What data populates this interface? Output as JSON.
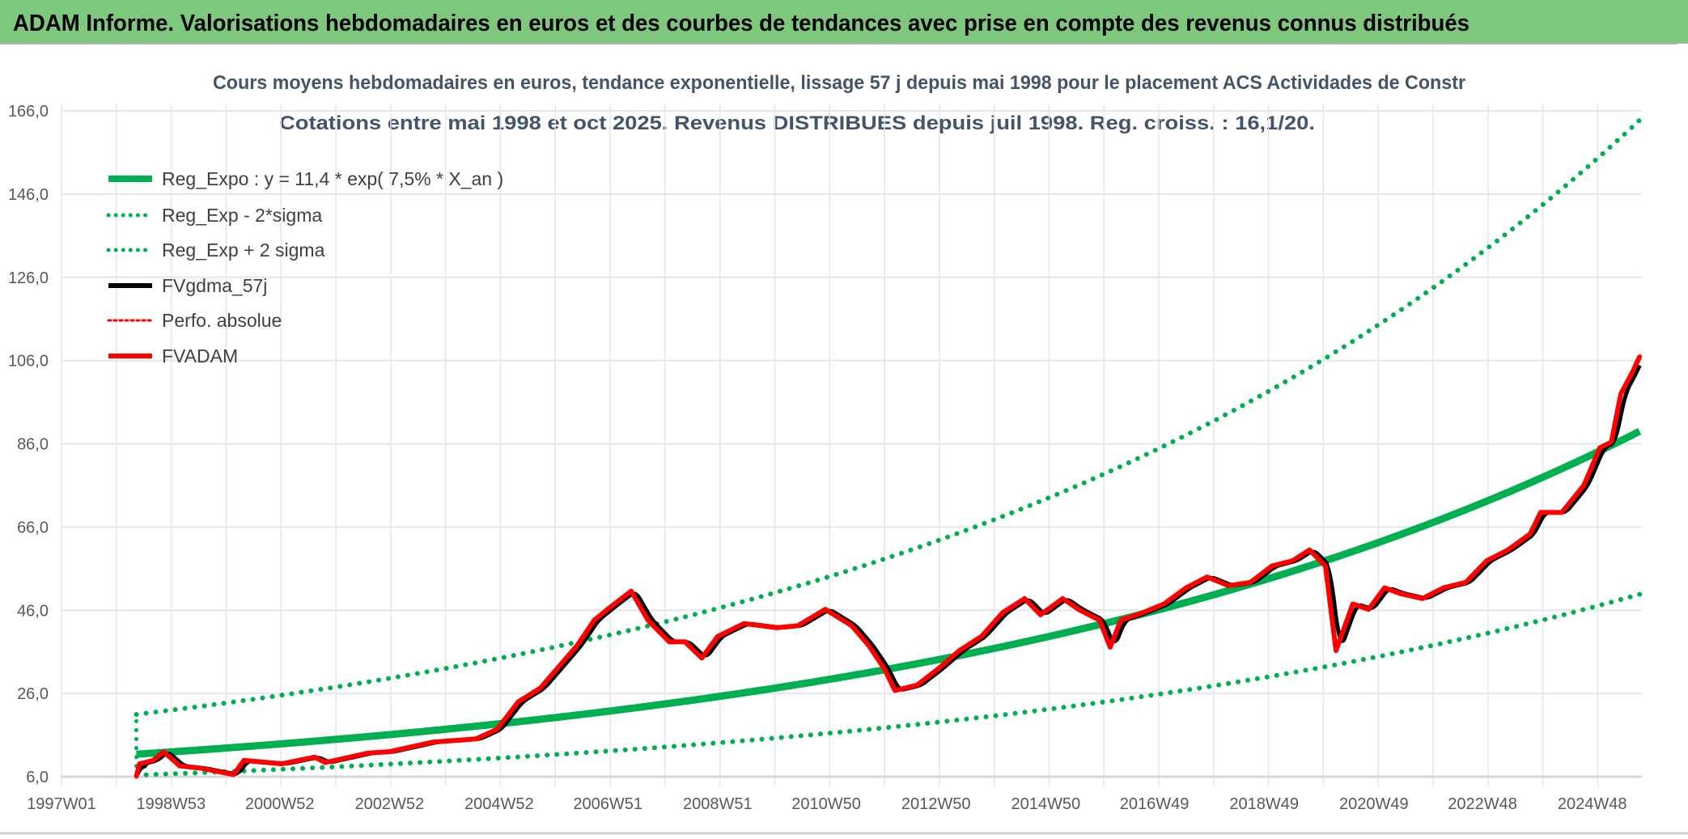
{
  "banner": {
    "title": "ADAM Informe. Valorisations hebdomadaires en euros et des courbes de tendances avec prise en compte des revenus connus distribués",
    "color": "#7DC87D"
  },
  "chart_data": {
    "type": "line",
    "title": "Cours moyens hebdomadaires en euros, tendance exponentielle, lissage 57 j depuis mai 1998 pour le placement ACS Actividades de Constr",
    "subtitle": "Cotations entre mai 1998 et oct 2025. Revenus DISTRIBUES depuis juil 1998. Reg. croiss. : 16,1/20.",
    "xlabel": "",
    "ylabel": "",
    "ylim": [
      6,
      166
    ],
    "y_ticks": [
      "6,0",
      "26,0",
      "46,0",
      "66,0",
      "86,0",
      "106,0",
      "126,0",
      "146,0",
      "166,0"
    ],
    "y_tick_values": [
      6,
      26,
      46,
      66,
      86,
      106,
      126,
      146,
      166
    ],
    "x_ticks": [
      "1997W01",
      "1998W53",
      "2000W52",
      "2002W52",
      "2004W52",
      "2006W51",
      "2008W51",
      "2010W50",
      "2012W50",
      "2014W50",
      "2016W49",
      "2018W49",
      "2020W49",
      "2022W48",
      "2024W48"
    ],
    "xlim": [
      "1997W01",
      "2025W43"
    ],
    "grid": true,
    "legend_placement": "top-left",
    "trend": {
      "start": "1998W20",
      "end": "2025W43",
      "a": 11.4,
      "rate": 0.075,
      "band_factor_upper": 1.84,
      "band_factor_lower": 0.56
    },
    "series": [
      {
        "name": "Reg_Expo : y = 11,4 * exp( 7,5% *  X_an )",
        "color": "#00B050",
        "style": "solid"
      },
      {
        "name": "Reg_Exp - 2*sigma",
        "color": "#00B050",
        "style": "dotted"
      },
      {
        "name": "Reg_Exp + 2 sigma",
        "color": "#00B050",
        "style": "dotted"
      },
      {
        "name": "FVgdma_57j",
        "color": "#000000",
        "style": "solid"
      },
      {
        "name": "Perfo. absolue",
        "color": "#FF0000",
        "style": "dotted"
      },
      {
        "name": "FVADAM",
        "color": "#FF0000",
        "style": "solid",
        "x": [
          "1998W20",
          "1998W23",
          "1998W36",
          "1998W46",
          "1999W09",
          "1999W30",
          "2000W08",
          "2000W18",
          "2001W02",
          "2001W33",
          "2001W43",
          "2002W32",
          "2002W52",
          "2003W41",
          "2004W30",
          "2004W50",
          "2005W18",
          "2005W39",
          "2006W07",
          "2006W22",
          "2006W38",
          "2007W01",
          "2007W21",
          "2007W37",
          "2008W05",
          "2008W20",
          "2008W36",
          "2008W51",
          "2009W24",
          "2010W03",
          "2010W23",
          "2010W49",
          "2011W22",
          "2011W38",
          "2012W01",
          "2012W11",
          "2012W32",
          "2012W52",
          "2013W20",
          "2013W41",
          "2014W09",
          "2014W30",
          "2014W45",
          "2015W14",
          "2015W29",
          "2015W49",
          "2016W07",
          "2016W17",
          "2016W38",
          "2017W06",
          "2017W27",
          "2017W47",
          "2018W15",
          "2018W36",
          "2019W04",
          "2019W24",
          "2019W40",
          "2020W03",
          "2020W13",
          "2020W29",
          "2020W44",
          "2021W07",
          "2021W22",
          "2021W43",
          "2022W11",
          "2022W32",
          "2022W52",
          "2023W20",
          "2023W41",
          "2023W51",
          "2024W19",
          "2024W40",
          "2025W03",
          "2025W14",
          "2025W23",
          "2025W34",
          "2025W41"
        ],
        "values": [
          6.0,
          9.1,
          9.9,
          12.0,
          8.6,
          8.0,
          6.5,
          9.9,
          9.1,
          10.7,
          9.4,
          11.7,
          12.0,
          14.3,
          15.1,
          17.4,
          24.0,
          27.3,
          33.2,
          37.6,
          43.6,
          46.7,
          50.6,
          43.6,
          38.4,
          38.4,
          34.5,
          39.7,
          42.8,
          41.8,
          42.3,
          46.2,
          42.3,
          37.6,
          31.9,
          26.7,
          28.0,
          31.9,
          36.3,
          39.7,
          45.4,
          48.8,
          44.9,
          48.8,
          46.2,
          43.6,
          37.1,
          43.6,
          45.4,
          47.5,
          51.4,
          54.0,
          51.9,
          52.7,
          56.6,
          57.9,
          60.5,
          56.6,
          36.3,
          47.5,
          46.2,
          51.4,
          50.0,
          48.8,
          51.4,
          52.7,
          57.9,
          60.5,
          64.3,
          69.5,
          69.5,
          76.0,
          85.0,
          86.4,
          98.0,
          103.2,
          107.0
        ]
      }
    ]
  }
}
